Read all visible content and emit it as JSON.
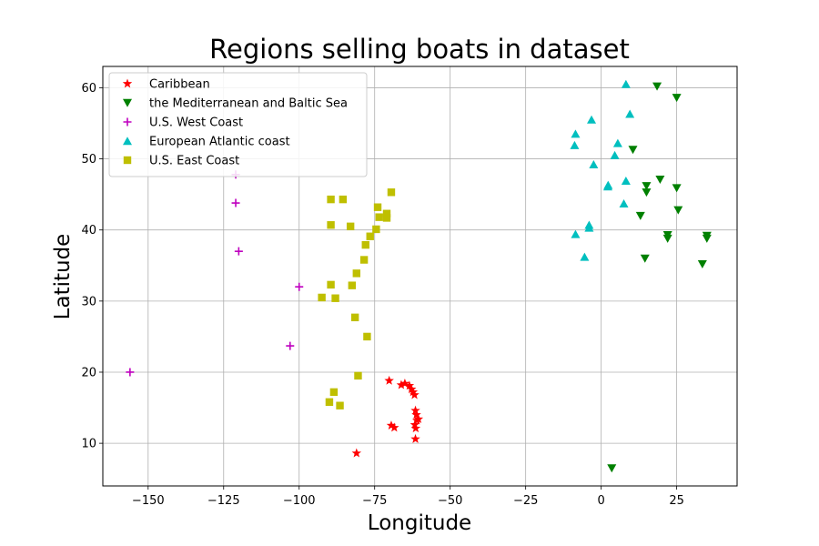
{
  "chart_data": {
    "type": "scatter",
    "title": "Regions selling boats in dataset",
    "xlabel": "Longitude",
    "ylabel": "Latitude",
    "xlim": [
      -165,
      45
    ],
    "ylim": [
      4,
      63
    ],
    "xticks": [
      -150,
      -125,
      -100,
      -75,
      -50,
      -25,
      0,
      25
    ],
    "yticks": [
      10,
      20,
      30,
      40,
      50,
      60
    ],
    "grid": true,
    "legend_position": "upper-left",
    "series": [
      {
        "name": "Caribbean",
        "marker": "star",
        "color": "#ff0000",
        "points": [
          [
            -81,
            8.6
          ],
          [
            -70.2,
            18.8
          ],
          [
            -69.5,
            12.5
          ],
          [
            -68.5,
            12.2
          ],
          [
            -66.2,
            18.2
          ],
          [
            -65,
            18.4
          ],
          [
            -63.5,
            18.1
          ],
          [
            -62.8,
            17.6
          ],
          [
            -62.3,
            17.2
          ],
          [
            -61.8,
            16.8
          ],
          [
            -61.5,
            14.6
          ],
          [
            -61.2,
            14
          ],
          [
            -61,
            13.2
          ],
          [
            -60.5,
            13.4
          ],
          [
            -61.7,
            12.6
          ],
          [
            -61.4,
            12.1
          ],
          [
            -61.5,
            10.6
          ]
        ]
      },
      {
        "name": "the Mediterranean and Baltic Sea",
        "marker": "triangle_down",
        "color": "#008000",
        "points": [
          [
            18.5,
            60.2
          ],
          [
            25,
            58.6
          ],
          [
            10.5,
            51.3
          ],
          [
            19.5,
            47.1
          ],
          [
            15,
            46.2
          ],
          [
            15,
            45.3
          ],
          [
            25,
            45.9
          ],
          [
            13,
            42
          ],
          [
            25.5,
            42.8
          ],
          [
            22,
            39.3
          ],
          [
            22,
            38.8
          ],
          [
            35,
            39.2
          ],
          [
            35,
            38.8
          ],
          [
            14.5,
            36
          ],
          [
            33.5,
            35.2
          ],
          [
            3.5,
            6.5
          ]
        ]
      },
      {
        "name": "U.S. West Coast",
        "marker": "plus",
        "color": "#bf00bf",
        "points": [
          [
            -121,
            47.8
          ],
          [
            -121,
            43.8
          ],
          [
            -120,
            37
          ],
          [
            -100,
            32
          ],
          [
            -103,
            23.7
          ],
          [
            -156,
            20
          ]
        ]
      },
      {
        "name": "European Atlantic coast",
        "marker": "triangle_up",
        "color": "#00bfbf",
        "points": [
          [
            8.2,
            60.5
          ],
          [
            9.5,
            56.3
          ],
          [
            -3.2,
            55.5
          ],
          [
            -8.5,
            53.5
          ],
          [
            -8.8,
            51.9
          ],
          [
            5.5,
            52.2
          ],
          [
            4.5,
            50.5
          ],
          [
            -2.5,
            49.2
          ],
          [
            2.3,
            46.3
          ],
          [
            2.2,
            46.1
          ],
          [
            8.2,
            46.9
          ],
          [
            7.5,
            43.7
          ],
          [
            -4,
            40.7
          ],
          [
            -4,
            40.3
          ],
          [
            -8.5,
            39.4
          ],
          [
            -5.5,
            36.2
          ]
        ]
      },
      {
        "name": "U.S. East Coast",
        "marker": "square",
        "color": "#bfbf00",
        "points": [
          [
            -69.5,
            45.3
          ],
          [
            -89.5,
            44.3
          ],
          [
            -85.5,
            44.3
          ],
          [
            -74,
            43.2
          ],
          [
            -71,
            42.3
          ],
          [
            -71,
            41.7
          ],
          [
            -73.5,
            41.8
          ],
          [
            -89.5,
            40.7
          ],
          [
            -83,
            40.5
          ],
          [
            -74.5,
            40.1
          ],
          [
            -76.5,
            39.1
          ],
          [
            -78,
            37.9
          ],
          [
            -78.5,
            35.8
          ],
          [
            -81,
            33.9
          ],
          [
            -82.5,
            32.2
          ],
          [
            -89.5,
            32.3
          ],
          [
            -92.5,
            30.5
          ],
          [
            -88,
            30.4
          ],
          [
            -81.5,
            27.7
          ],
          [
            -77.5,
            25
          ],
          [
            -80.5,
            19.5
          ],
          [
            -88.5,
            17.2
          ],
          [
            -90,
            15.8
          ],
          [
            -86.5,
            15.3
          ]
        ]
      }
    ]
  }
}
